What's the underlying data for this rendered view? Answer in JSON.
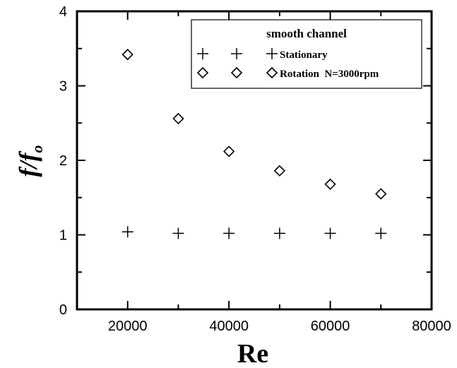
{
  "chart_data": {
    "type": "scatter",
    "xlabel": "Re",
    "ylabel_main": "f/f",
    "ylabel_sub": "o",
    "xlim": [
      10000,
      80000
    ],
    "ylim": [
      0,
      4
    ],
    "x_ticks": [
      20000,
      40000,
      60000,
      80000
    ],
    "y_ticks": [
      0,
      1,
      2,
      3,
      4
    ],
    "grid": false,
    "legend": {
      "title": "smooth channel",
      "position": "top-right",
      "entries": [
        "Stationary",
        "Rotation  N=3000rpm"
      ]
    },
    "series": [
      {
        "name": "Stationary",
        "marker": "plus",
        "x": [
          20000,
          30000,
          40000,
          50000,
          60000,
          70000
        ],
        "y": [
          1.04,
          1.02,
          1.02,
          1.02,
          1.02,
          1.02
        ]
      },
      {
        "name": "Rotation  N=3000rpm",
        "marker": "diamond",
        "x": [
          20000,
          30000,
          40000,
          50000,
          60000,
          70000
        ],
        "y": [
          3.42,
          2.56,
          2.12,
          1.86,
          1.68,
          1.55
        ]
      }
    ]
  }
}
